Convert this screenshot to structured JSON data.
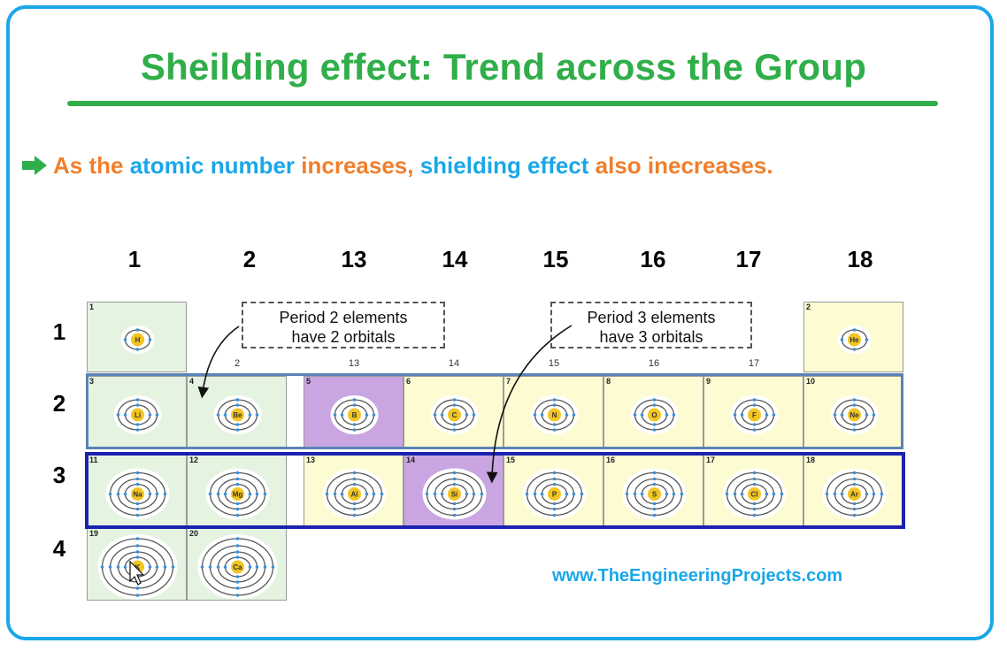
{
  "title": "Sheilding effect: Trend across the Group",
  "statement": {
    "parts": [
      {
        "text": "As the ",
        "color": "orange"
      },
      {
        "text": "atomic number ",
        "color": "blue"
      },
      {
        "text": "increases, ",
        "color": "orange"
      },
      {
        "text": "shielding effect ",
        "color": "blue"
      },
      {
        "text": "also inecreases.",
        "color": "orange"
      }
    ]
  },
  "groups": [
    "1",
    "2",
    "13",
    "14",
    "15",
    "16",
    "17",
    "18"
  ],
  "periods": [
    "1",
    "2",
    "3",
    "4"
  ],
  "small_group_labels": [
    "2",
    "13",
    "14",
    "15",
    "16",
    "17"
  ],
  "notes": {
    "period2": {
      "line1": "Period 2 elements",
      "line2": "have 2 orbitals"
    },
    "period3": {
      "line1": "Period 3 elements",
      "line2": "have 3 orbitals"
    }
  },
  "elements": [
    {
      "num": "1",
      "symbol": "H",
      "shells": 1,
      "block": "s"
    },
    {
      "num": "2",
      "symbol": "He",
      "shells": 1,
      "block": "p"
    },
    {
      "num": "3",
      "symbol": "Li",
      "shells": 2,
      "block": "s"
    },
    {
      "num": "4",
      "symbol": "Be",
      "shells": 2,
      "block": "s"
    },
    {
      "num": "5",
      "symbol": "B",
      "shells": 2,
      "block": "v"
    },
    {
      "num": "6",
      "symbol": "C",
      "shells": 2,
      "block": "p"
    },
    {
      "num": "7",
      "symbol": "N",
      "shells": 2,
      "block": "p"
    },
    {
      "num": "8",
      "symbol": "O",
      "shells": 2,
      "block": "p"
    },
    {
      "num": "9",
      "symbol": "F",
      "shells": 2,
      "block": "p"
    },
    {
      "num": "10",
      "symbol": "Ne",
      "shells": 2,
      "block": "p"
    },
    {
      "num": "11",
      "symbol": "Na",
      "shells": 3,
      "block": "s"
    },
    {
      "num": "12",
      "symbol": "Mg",
      "shells": 3,
      "block": "s"
    },
    {
      "num": "13",
      "symbol": "Al",
      "shells": 3,
      "block": "p"
    },
    {
      "num": "14",
      "symbol": "Si",
      "shells": 3,
      "block": "v"
    },
    {
      "num": "15",
      "symbol": "P",
      "shells": 3,
      "block": "p"
    },
    {
      "num": "16",
      "symbol": "S",
      "shells": 3,
      "block": "p"
    },
    {
      "num": "17",
      "symbol": "Cl",
      "shells": 3,
      "block": "p"
    },
    {
      "num": "18",
      "symbol": "Ar",
      "shells": 3,
      "block": "p"
    },
    {
      "num": "19",
      "symbol": "K",
      "shells": 4,
      "block": "s"
    },
    {
      "num": "20",
      "symbol": "Ca",
      "shells": 4,
      "block": "s"
    }
  ],
  "colors": {
    "title": "#2fae49",
    "orange": "#f07f2c",
    "blue": "#1aa7e8",
    "frame": "#1aa7e8",
    "s_block": "#e4f4e1",
    "p_block": "#fdfbd2",
    "highlight": "#c9a6e2",
    "period2_box": "#5b83b5",
    "period3_box": "#1a22b0",
    "nucleus": "#f2c522",
    "electron": "#3b8fd6"
  },
  "website": "www.TheEngineeringProjects.com"
}
